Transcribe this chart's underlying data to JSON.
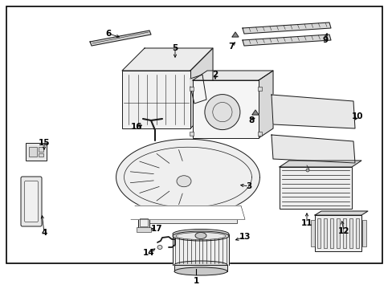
{
  "bg_color": "#ffffff",
  "border_color": "#000000",
  "line_color": "#1a1a1a",
  "label_color": "#000000",
  "fig_width": 4.89,
  "fig_height": 3.6,
  "dpi": 100,
  "parts": [
    {
      "id": 1
    },
    {
      "id": 2
    },
    {
      "id": 3
    },
    {
      "id": 4
    },
    {
      "id": 5
    },
    {
      "id": 6
    },
    {
      "id": 7
    },
    {
      "id": 8
    },
    {
      "id": 9
    },
    {
      "id": 10
    },
    {
      "id": 11
    },
    {
      "id": 12
    },
    {
      "id": 13
    },
    {
      "id": 14
    },
    {
      "id": 15
    },
    {
      "id": 16
    },
    {
      "id": 17
    }
  ]
}
